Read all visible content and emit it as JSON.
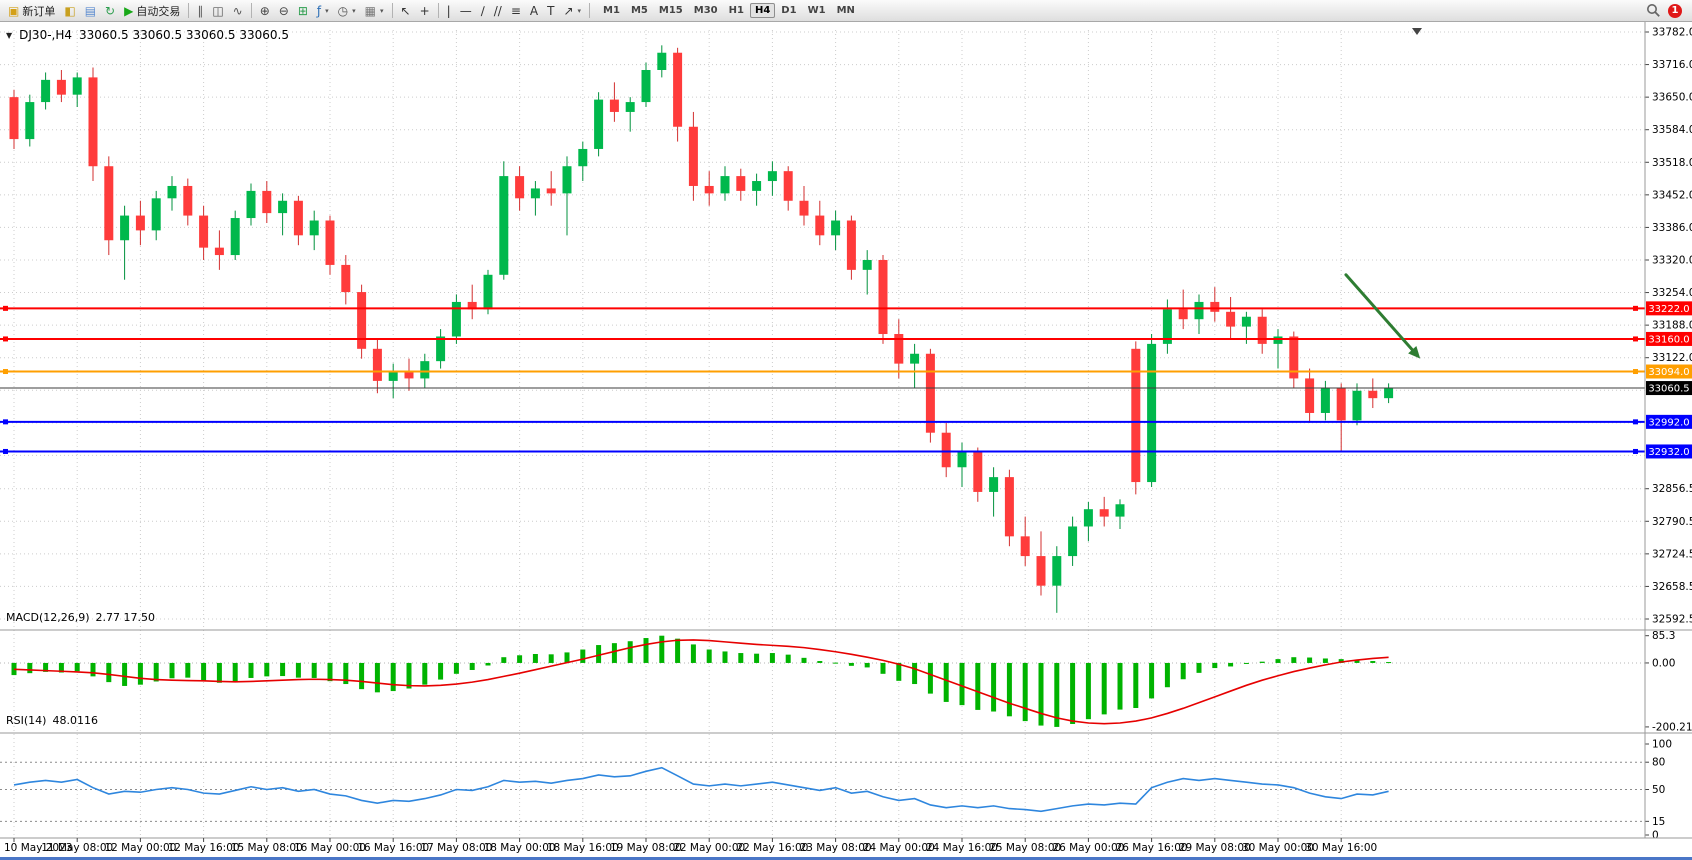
{
  "toolbar": {
    "items": [
      {
        "type": "button",
        "name": "new-order-button",
        "glyph": "▣",
        "color": "#d4a017",
        "label": "新订单"
      },
      {
        "type": "button",
        "name": "chart-window-icon",
        "glyph": "◧",
        "color": "#c8a020"
      },
      {
        "type": "button",
        "name": "market-watch-icon",
        "glyph": "▤",
        "color": "#5b8bd0"
      },
      {
        "type": "button",
        "name": "refresh-icon",
        "glyph": "↻",
        "color": "#2e9e4f"
      },
      {
        "type": "button",
        "name": "autotrading-button",
        "glyph": "▶",
        "color": "#18a818",
        "label": "自动交易"
      },
      {
        "type": "sep"
      },
      {
        "type": "button",
        "name": "bar-chart-icon",
        "glyph": "∥",
        "color": "#555555"
      },
      {
        "type": "button",
        "name": "candlestick-chart-icon",
        "glyph": "◫",
        "color": "#555555"
      },
      {
        "type": "button",
        "name": "line-chart-icon",
        "glyph": "∿",
        "color": "#555555"
      },
      {
        "type": "sep"
      },
      {
        "type": "button",
        "name": "zoom-in-icon",
        "glyph": "⊕",
        "color": "#444444"
      },
      {
        "type": "button",
        "name": "zoom-out-icon",
        "glyph": "⊖",
        "color": "#444444"
      },
      {
        "type": "button",
        "name": "tile-windows-icon",
        "glyph": "⊞",
        "color": "#2e9e4f"
      },
      {
        "type": "button",
        "name": "indicators-icon",
        "glyph": "ƒ",
        "color": "#2a6db5",
        "dropdown": true
      },
      {
        "type": "button",
        "name": "period-dropdown-icon",
        "glyph": "◷",
        "color": "#555555",
        "dropdown": true
      },
      {
        "type": "button",
        "name": "templates-icon",
        "glyph": "▦",
        "color": "#777777",
        "dropdown": true
      },
      {
        "type": "sep"
      },
      {
        "type": "button",
        "name": "cursor-icon",
        "glyph": "↖",
        "color": "#333333"
      },
      {
        "type": "button",
        "name": "crosshair-icon",
        "glyph": "+",
        "color": "#333333"
      },
      {
        "type": "sep"
      },
      {
        "type": "button",
        "name": "vertical-line-icon",
        "glyph": "|",
        "color": "#333333"
      },
      {
        "type": "button",
        "name": "horizontal-line-icon",
        "glyph": "—",
        "color": "#333333"
      },
      {
        "type": "button",
        "name": "trendline-icon",
        "glyph": "∕",
        "color": "#333333"
      },
      {
        "type": "button",
        "name": "channel-icon",
        "glyph": "//",
        "color": "#333333"
      },
      {
        "type": "button",
        "name": "fibonacci-icon",
        "glyph": "≡",
        "color": "#333333"
      },
      {
        "type": "button",
        "name": "text-icon",
        "glyph": "A",
        "color": "#333333"
      },
      {
        "type": "button",
        "name": "text-label-icon",
        "glyph": "T",
        "color": "#333333"
      },
      {
        "type": "button",
        "name": "arrows-icon",
        "glyph": "↗",
        "color": "#333333",
        "dropdown": true
      },
      {
        "type": "sep"
      }
    ],
    "timeframes": [
      "M1",
      "M5",
      "M15",
      "M30",
      "H1",
      "H4",
      "D1",
      "W1",
      "MN"
    ],
    "active_timeframe": "H4",
    "notification_count": "1"
  },
  "chart_header": {
    "collapse_icon": "▼",
    "symbol": "DJ30-,H4",
    "ohlc": "33060.5 33060.5 33060.5 33060.5"
  },
  "price_axis": {
    "labels": [
      {
        "text": "33782.0",
        "value": 33782
      },
      {
        "text": "33716.0",
        "value": 33716
      },
      {
        "text": "33650.0",
        "value": 33650
      },
      {
        "text": "33584.0",
        "value": 33584
      },
      {
        "text": "33518.0",
        "value": 33518
      },
      {
        "text": "33452.0",
        "value": 33452
      },
      {
        "text": "33386.0",
        "value": 33386
      },
      {
        "text": "33320.0",
        "value": 33320
      },
      {
        "text": "33254.0",
        "value": 33254
      },
      {
        "text": "33188.0",
        "value": 33188
      },
      {
        "text": "33122.0",
        "value": 33122
      },
      {
        "text": "32856.5",
        "value": 32856.5
      },
      {
        "text": "32790.5",
        "value": 32790.5
      },
      {
        "text": "32724.5",
        "value": 32724.5
      },
      {
        "text": "32658.5",
        "value": 32658.5
      },
      {
        "text": "32592.5",
        "value": 32592.5
      }
    ],
    "grid_prices": [
      33782,
      33716,
      33650,
      33584,
      33518,
      33452,
      33386,
      33320,
      33254,
      33188,
      33122,
      33056,
      32990,
      32924,
      32856.5,
      32790.5,
      32724.5,
      32658.5,
      32592.5
    ]
  },
  "hlines": [
    {
      "name": "resistance-line-1",
      "price": 33222.0,
      "tag": "33222.0",
      "color": "#ff0000",
      "width": 2,
      "handles": true
    },
    {
      "name": "resistance-line-2",
      "price": 33160.0,
      "tag": "33160.0",
      "color": "#ff0000",
      "width": 2,
      "handles": true
    },
    {
      "name": "pivot-line",
      "price": 33094.0,
      "tag": "33094.0",
      "color": "#ff9f00",
      "width": 2,
      "handles": true
    },
    {
      "name": "current-price-line",
      "price": 33060.5,
      "tag": "33060.5",
      "color": "#3c3c3c",
      "tag_color": "#000000",
      "width": 1,
      "handles": false
    },
    {
      "name": "support-line-1",
      "price": 32992.0,
      "tag": "32992.0",
      "color": "#0000ff",
      "width": 2,
      "handles": true
    },
    {
      "name": "support-line-2",
      "price": 32932.0,
      "tag": "32932.0",
      "color": "#0000ff",
      "width": 2,
      "handles": true
    }
  ],
  "annotations": {
    "arrow": {
      "name": "trend-arrow",
      "color": "#2e7d32",
      "width": 3,
      "from": {
        "bar": 84.3,
        "price": 33290
      },
      "to": {
        "bar": 89,
        "price": 33120
      }
    }
  },
  "chart_data": {
    "type": "candlestick",
    "symbol": "DJ30-",
    "timeframe": "H4",
    "ylim": [
      32592.5,
      33782
    ],
    "bars_per_label": 4,
    "colors": {
      "up": "#00b84c",
      "down": "#ff3b3b",
      "up_wick": "#00913c",
      "down_wick": "#d32f2f"
    },
    "candles": [
      [
        33650,
        33665,
        33545,
        33565
      ],
      [
        33565,
        33655,
        33550,
        33640
      ],
      [
        33640,
        33700,
        33625,
        33685
      ],
      [
        33685,
        33705,
        33640,
        33655
      ],
      [
        33655,
        33700,
        33630,
        33690
      ],
      [
        33690,
        33710,
        33480,
        33510
      ],
      [
        33510,
        33530,
        33330,
        33360
      ],
      [
        33360,
        33430,
        33280,
        33410
      ],
      [
        33410,
        33440,
        33350,
        33380
      ],
      [
        33380,
        33460,
        33360,
        33445
      ],
      [
        33445,
        33490,
        33420,
        33470
      ],
      [
        33470,
        33485,
        33390,
        33410
      ],
      [
        33410,
        33430,
        33320,
        33345
      ],
      [
        33345,
        33380,
        33300,
        33330
      ],
      [
        33330,
        33420,
        33320,
        33405
      ],
      [
        33405,
        33475,
        33390,
        33460
      ],
      [
        33460,
        33480,
        33395,
        33415
      ],
      [
        33415,
        33455,
        33370,
        33440
      ],
      [
        33440,
        33450,
        33350,
        33370
      ],
      [
        33370,
        33420,
        33340,
        33400
      ],
      [
        33400,
        33410,
        33290,
        33310
      ],
      [
        33310,
        33330,
        33230,
        33255
      ],
      [
        33255,
        33270,
        33120,
        33140
      ],
      [
        33140,
        33160,
        33050,
        33075
      ],
      [
        33075,
        33110,
        33040,
        33095
      ],
      [
        33095,
        33120,
        33055,
        33080
      ],
      [
        33080,
        33130,
        33060,
        33115
      ],
      [
        33115,
        33180,
        33100,
        33165
      ],
      [
        33165,
        33250,
        33150,
        33235
      ],
      [
        33235,
        33270,
        33200,
        33220
      ],
      [
        33220,
        33300,
        33210,
        33290
      ],
      [
        33290,
        33520,
        33280,
        33490
      ],
      [
        33490,
        33510,
        33420,
        33445
      ],
      [
        33445,
        33480,
        33410,
        33465
      ],
      [
        33465,
        33500,
        33430,
        33455
      ],
      [
        33455,
        33530,
        33370,
        33510
      ],
      [
        33510,
        33560,
        33480,
        33545
      ],
      [
        33545,
        33660,
        33530,
        33645
      ],
      [
        33645,
        33680,
        33600,
        33620
      ],
      [
        33620,
        33650,
        33580,
        33640
      ],
      [
        33640,
        33720,
        33630,
        33705
      ],
      [
        33705,
        33755,
        33690,
        33740
      ],
      [
        33740,
        33750,
        33560,
        33590
      ],
      [
        33590,
        33620,
        33440,
        33470
      ],
      [
        33470,
        33500,
        33430,
        33455
      ],
      [
        33455,
        33510,
        33440,
        33490
      ],
      [
        33490,
        33505,
        33440,
        33460
      ],
      [
        33460,
        33495,
        33430,
        33480
      ],
      [
        33480,
        33520,
        33450,
        33500
      ],
      [
        33500,
        33510,
        33420,
        33440
      ],
      [
        33440,
        33470,
        33390,
        33410
      ],
      [
        33410,
        33440,
        33350,
        33370
      ],
      [
        33370,
        33420,
        33340,
        33400
      ],
      [
        33400,
        33410,
        33280,
        33300
      ],
      [
        33300,
        33340,
        33250,
        33320
      ],
      [
        33320,
        33330,
        33150,
        33170
      ],
      [
        33170,
        33200,
        33080,
        33110
      ],
      [
        33110,
        33150,
        33060,
        33130
      ],
      [
        33130,
        33140,
        32950,
        32970
      ],
      [
        32970,
        32990,
        32880,
        32900
      ],
      [
        32900,
        32950,
        32860,
        32930
      ],
      [
        32930,
        32940,
        32830,
        32850
      ],
      [
        32850,
        32900,
        32800,
        32880
      ],
      [
        32880,
        32895,
        32740,
        32760
      ],
      [
        32760,
        32800,
        32700,
        32720
      ],
      [
        32720,
        32770,
        32640,
        32660
      ],
      [
        32660,
        32740,
        32605,
        32720
      ],
      [
        32720,
        32800,
        32700,
        32780
      ],
      [
        32780,
        32830,
        32750,
        32815
      ],
      [
        32815,
        32840,
        32780,
        32800
      ],
      [
        32800,
        32835,
        32775,
        32825
      ],
      [
        33140,
        33155,
        32845,
        32870
      ],
      [
        32870,
        33170,
        32860,
        33150
      ],
      [
        33150,
        33240,
        33130,
        33220
      ],
      [
        33220,
        33260,
        33180,
        33200
      ],
      [
        33200,
        33250,
        33170,
        33235
      ],
      [
        33235,
        33265,
        33195,
        33215
      ],
      [
        33215,
        33245,
        33160,
        33185
      ],
      [
        33185,
        33215,
        33150,
        33205
      ],
      [
        33205,
        33220,
        33130,
        33150
      ],
      [
        33150,
        33180,
        33100,
        33165
      ],
      [
        33165,
        33175,
        33060,
        33080
      ],
      [
        33080,
        33100,
        32990,
        33010
      ],
      [
        33010,
        33075,
        32995,
        33060
      ],
      [
        33060,
        33070,
        32930,
        32995
      ],
      [
        32995,
        33070,
        32985,
        33055
      ],
      [
        33055,
        33080,
        33020,
        33040
      ],
      [
        33040,
        33070,
        33030,
        33060.5
      ]
    ],
    "time_labels": [
      "10 May 2023",
      "11 May 08:00",
      "12 May 00:00",
      "12 May 16:00",
      "15 May 08:00",
      "16 May 00:00",
      "16 May 16:00",
      "17 May 08:00",
      "18 May 00:00",
      "18 May 16:00",
      "19 May 08:00",
      "22 May 00:00",
      "22 May 16:00",
      "23 May 08:00",
      "24 May 00:00",
      "24 May 16:00",
      "25 May 08:00",
      "26 May 00:00",
      "26 May 16:00",
      "29 May 08:00",
      "30 May 00:00",
      "30 May 16:00"
    ]
  },
  "macd": {
    "title": "MACD(12,26,9)",
    "values": "2.77 17.50",
    "ylim": [
      -213,
      100
    ],
    "colors": {
      "histogram": "#00b300",
      "signal": "#e60000"
    },
    "axis_labels": [
      {
        "text": "85.3",
        "value": 85.3
      },
      {
        "text": "0.00",
        "value": 0
      },
      {
        "text": "-200.21",
        "value": -200.21
      }
    ],
    "histogram": [
      -38,
      -32,
      -28,
      -30,
      -26,
      -42,
      -60,
      -72,
      -68,
      -58,
      -48,
      -46,
      -56,
      -62,
      -57,
      -47,
      -42,
      -41,
      -46,
      -47,
      -57,
      -66,
      -82,
      -92,
      -88,
      -80,
      -68,
      -52,
      -34,
      -22,
      -8,
      18,
      24,
      28,
      27,
      33,
      42,
      56,
      62,
      68,
      78,
      85.3,
      76,
      58,
      42,
      36,
      31,
      29,
      31,
      26,
      16,
      6,
      1,
      -9,
      -14,
      -34,
      -56,
      -66,
      -96,
      -122,
      -132,
      -147,
      -152,
      -167,
      -182,
      -196,
      -200.21,
      -191,
      -176,
      -161,
      -146,
      -141,
      -111,
      -76,
      -51,
      -31,
      -16,
      -11,
      -2,
      4,
      12,
      18,
      17,
      14,
      12,
      9,
      6,
      2.77
    ],
    "signal": [
      -20,
      -22,
      -24,
      -26,
      -28,
      -31,
      -36,
      -42,
      -48,
      -52,
      -54,
      -55,
      -56,
      -58,
      -59,
      -58,
      -56,
      -54,
      -52,
      -51,
      -52,
      -54,
      -58,
      -63,
      -68,
      -71,
      -72,
      -70,
      -66,
      -60,
      -52,
      -42,
      -32,
      -21,
      -10,
      1,
      12,
      24,
      36,
      48,
      58,
      66,
      71,
      72,
      70,
      66,
      62,
      58,
      55,
      52,
      48,
      42,
      35,
      27,
      18,
      8,
      -4,
      -18,
      -36,
      -54,
      -72,
      -90,
      -108,
      -126,
      -142,
      -158,
      -172,
      -182,
      -188,
      -190,
      -188,
      -182,
      -172,
      -158,
      -142,
      -124,
      -106,
      -88,
      -70,
      -54,
      -40,
      -27,
      -16,
      -6,
      3,
      9,
      14,
      17.5
    ]
  },
  "rsi": {
    "title": "RSI(14)",
    "value": "48.0116",
    "ylim": [
      0,
      100
    ],
    "color": "#2e86de",
    "levels": [
      80,
      50,
      15
    ],
    "axis_labels": [
      {
        "text": "100",
        "value": 100
      },
      {
        "text": "80",
        "value": 80
      },
      {
        "text": "50",
        "value": 50
      },
      {
        "text": "15",
        "value": 15
      },
      {
        "text": "0",
        "value": 0
      }
    ],
    "values": [
      55,
      58,
      60,
      58,
      61,
      52,
      45,
      48,
      47,
      50,
      52,
      50,
      46,
      45,
      49,
      53,
      50,
      52,
      48,
      50,
      45,
      43,
      38,
      35,
      38,
      37,
      40,
      44,
      50,
      49,
      53,
      60,
      58,
      59,
      57,
      60,
      62,
      66,
      64,
      65,
      70,
      74,
      65,
      56,
      54,
      56,
      54,
      56,
      58,
      55,
      52,
      49,
      52,
      46,
      48,
      42,
      38,
      40,
      33,
      30,
      32,
      30,
      32,
      29,
      28,
      26,
      29,
      32,
      34,
      33,
      35,
      34,
      52,
      58,
      62,
      60,
      62,
      60,
      58,
      56,
      55,
      52,
      46,
      42,
      40,
      45,
      44,
      48
    ]
  }
}
